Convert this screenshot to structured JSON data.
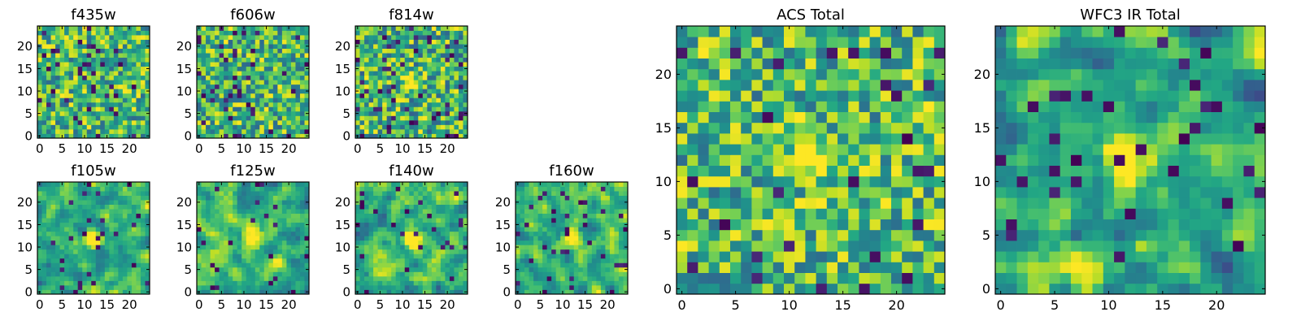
{
  "chart_data": [
    {
      "type": "heatmap",
      "title": "f435w",
      "grid_size": 25,
      "colormap": "viridis",
      "xticks": [
        0,
        5,
        10,
        15,
        20
      ],
      "yticks": [
        0,
        5,
        10,
        15,
        20
      ],
      "seed": 11,
      "hotspots": [],
      "smooth": 0,
      "dark_fraction": 0.06,
      "bias": 0.68
    },
    {
      "type": "heatmap",
      "title": "f606w",
      "grid_size": 25,
      "colormap": "viridis",
      "xticks": [
        0,
        5,
        10,
        15,
        20
      ],
      "yticks": [
        0,
        5,
        10,
        15,
        20
      ],
      "seed": 23,
      "hotspots": [],
      "smooth": 0,
      "dark_fraction": 0.06,
      "bias": 0.66
    },
    {
      "type": "heatmap",
      "title": "f814w",
      "grid_size": 25,
      "colormap": "viridis",
      "xticks": [
        0,
        5,
        10,
        15,
        20
      ],
      "yticks": [
        0,
        5,
        10,
        15,
        20
      ],
      "seed": 37,
      "hotspots": [
        [
          12,
          12
        ]
      ],
      "smooth": 0,
      "dark_fraction": 0.06,
      "bias": 0.6
    },
    {
      "type": "heatmap",
      "title": "f105w",
      "grid_size": 25,
      "colormap": "viridis",
      "xticks": [
        0,
        5,
        10,
        15,
        20
      ],
      "yticks": [
        0,
        5,
        10,
        15,
        20
      ],
      "seed": 41,
      "hotspots": [
        [
          12,
          12
        ]
      ],
      "smooth": 1,
      "dark_fraction": 0.04,
      "bias": 0.62
    },
    {
      "type": "heatmap",
      "title": "f125w",
      "grid_size": 25,
      "colormap": "viridis",
      "xticks": [
        0,
        5,
        10,
        15,
        20
      ],
      "yticks": [
        0,
        5,
        10,
        15,
        20
      ],
      "seed": 53,
      "hotspots": [
        [
          12,
          12
        ]
      ],
      "smooth": 1,
      "dark_fraction": 0.04,
      "bias": 0.62
    },
    {
      "type": "heatmap",
      "title": "f140w",
      "grid_size": 25,
      "colormap": "viridis",
      "xticks": [
        0,
        5,
        10,
        15,
        20
      ],
      "yticks": [
        0,
        5,
        10,
        15,
        20
      ],
      "seed": 67,
      "hotspots": [
        [
          12,
          12
        ]
      ],
      "smooth": 1,
      "dark_fraction": 0.04,
      "bias": 0.58
    },
    {
      "type": "heatmap",
      "title": "f160w",
      "grid_size": 25,
      "colormap": "viridis",
      "xticks": [
        0,
        5,
        10,
        15,
        20
      ],
      "yticks": [
        0,
        5,
        10,
        15,
        20
      ],
      "seed": 79,
      "hotspots": [
        [
          12,
          12
        ]
      ],
      "smooth": 1,
      "dark_fraction": 0.05,
      "bias": 0.55
    },
    {
      "type": "heatmap",
      "title": "ACS Total",
      "grid_size": 25,
      "colormap": "viridis",
      "xticks": [
        0,
        5,
        10,
        15,
        20
      ],
      "yticks": [
        0,
        5,
        10,
        15,
        20
      ],
      "seed": 97,
      "hotspots": [
        [
          12,
          12
        ]
      ],
      "smooth": 0,
      "dark_fraction": 0.03,
      "bias": 0.7
    },
    {
      "type": "heatmap",
      "title": "WFC3 IR Total",
      "grid_size": 25,
      "colormap": "viridis",
      "xticks": [
        0,
        5,
        10,
        15,
        20
      ],
      "yticks": [
        0,
        5,
        10,
        15,
        20
      ],
      "seed": 113,
      "hotspots": [
        [
          12,
          12
        ],
        [
          7,
          2
        ]
      ],
      "smooth": 1,
      "dark_fraction": 0.05,
      "bias": 0.45
    }
  ]
}
